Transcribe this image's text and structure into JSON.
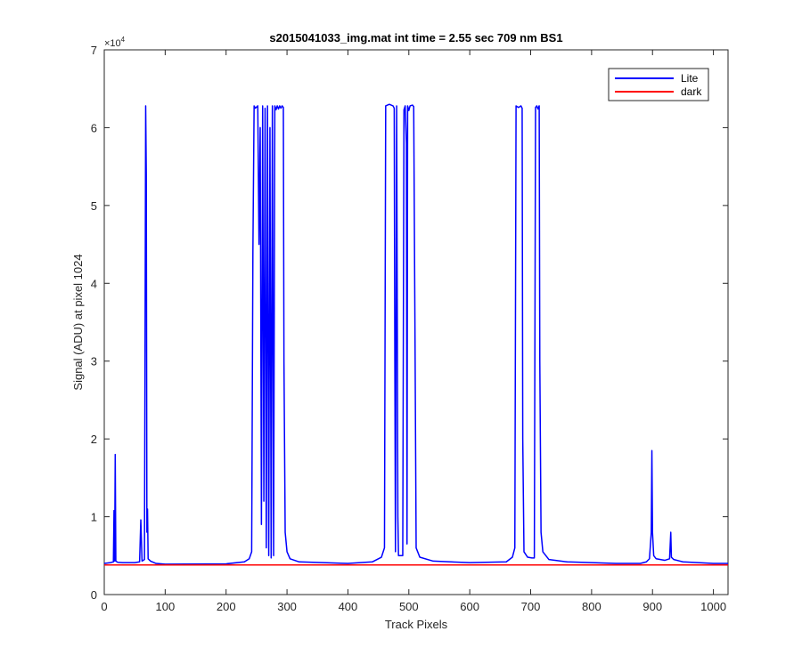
{
  "chart_data": {
    "type": "line",
    "title": "s2015041033_img.mat int time = 2.55 sec  709 nm BS1",
    "xlabel": "Track Pixels",
    "ylabel": "Signal (ADU) at pixel 1024",
    "xlim": [
      0,
      1024
    ],
    "ylim": [
      0,
      70000
    ],
    "xticks": [
      0,
      100,
      200,
      300,
      400,
      500,
      600,
      700,
      800,
      900,
      1000
    ],
    "yticks": [
      0,
      10000,
      20000,
      30000,
      40000,
      50000,
      60000,
      70000
    ],
    "ytick_labels": [
      "0",
      "1",
      "2",
      "3",
      "4",
      "5",
      "6",
      "7"
    ],
    "yscale_exponent_label": "×10",
    "yscale_exponent_power": "4",
    "grid": false,
    "legend_position": "top-right",
    "series": [
      {
        "name": "Lite",
        "color": "#0000ff",
        "points": [
          [
            0,
            4000
          ],
          [
            10,
            4100
          ],
          [
            15,
            4200
          ],
          [
            16,
            10800
          ],
          [
            17,
            4300
          ],
          [
            18,
            18000
          ],
          [
            19,
            4300
          ],
          [
            22,
            4150
          ],
          [
            30,
            4100
          ],
          [
            50,
            4100
          ],
          [
            58,
            4200
          ],
          [
            60,
            9600
          ],
          [
            62,
            4300
          ],
          [
            66,
            4500
          ],
          [
            68,
            62800
          ],
          [
            69,
            54000
          ],
          [
            70,
            8000
          ],
          [
            71,
            11000
          ],
          [
            72,
            4600
          ],
          [
            76,
            4300
          ],
          [
            85,
            4000
          ],
          [
            100,
            3900
          ],
          [
            200,
            3950
          ],
          [
            230,
            4200
          ],
          [
            238,
            4600
          ],
          [
            242,
            5500
          ],
          [
            244,
            44000
          ],
          [
            246,
            62800
          ],
          [
            248,
            62500
          ],
          [
            252,
            62800
          ],
          [
            254,
            45000
          ],
          [
            256,
            60000
          ],
          [
            258,
            9000
          ],
          [
            260,
            62800
          ],
          [
            262,
            12000
          ],
          [
            264,
            62500
          ],
          [
            266,
            6000
          ],
          [
            268,
            62800
          ],
          [
            270,
            5000
          ],
          [
            272,
            60000
          ],
          [
            274,
            4700
          ],
          [
            276,
            62800
          ],
          [
            278,
            5000
          ],
          [
            280,
            62800
          ],
          [
            282,
            62300
          ],
          [
            284,
            62800
          ],
          [
            286,
            62400
          ],
          [
            288,
            62800
          ],
          [
            290,
            62500
          ],
          [
            292,
            62800
          ],
          [
            294,
            62600
          ],
          [
            295,
            30000
          ],
          [
            297,
            8000
          ],
          [
            300,
            5500
          ],
          [
            305,
            4600
          ],
          [
            320,
            4200
          ],
          [
            400,
            4000
          ],
          [
            440,
            4200
          ],
          [
            455,
            4800
          ],
          [
            460,
            6000
          ],
          [
            462,
            62800
          ],
          [
            468,
            63000
          ],
          [
            474,
            62800
          ],
          [
            476,
            62500
          ],
          [
            477,
            30000
          ],
          [
            478,
            5500
          ],
          [
            480,
            62800
          ],
          [
            482,
            10000
          ],
          [
            483,
            5000
          ],
          [
            490,
            5000
          ],
          [
            492,
            62300
          ],
          [
            494,
            62800
          ],
          [
            496,
            58000
          ],
          [
            497,
            6500
          ],
          [
            498,
            62800
          ],
          [
            500,
            62200
          ],
          [
            502,
            62800
          ],
          [
            506,
            62900
          ],
          [
            508,
            62700
          ],
          [
            510,
            35000
          ],
          [
            512,
            6000
          ],
          [
            518,
            4800
          ],
          [
            540,
            4300
          ],
          [
            600,
            4100
          ],
          [
            660,
            4200
          ],
          [
            670,
            4800
          ],
          [
            674,
            6000
          ],
          [
            676,
            62800
          ],
          [
            680,
            62600
          ],
          [
            684,
            62800
          ],
          [
            686,
            62500
          ],
          [
            687,
            20000
          ],
          [
            689,
            5500
          ],
          [
            695,
            4800
          ],
          [
            702,
            4700
          ],
          [
            706,
            4700
          ],
          [
            708,
            62600
          ],
          [
            710,
            62800
          ],
          [
            712,
            62400
          ],
          [
            714,
            62800
          ],
          [
            715,
            30000
          ],
          [
            717,
            8000
          ],
          [
            720,
            5500
          ],
          [
            730,
            4500
          ],
          [
            760,
            4200
          ],
          [
            800,
            4100
          ],
          [
            840,
            4000
          ],
          [
            880,
            4000
          ],
          [
            890,
            4200
          ],
          [
            895,
            4600
          ],
          [
            898,
            8000
          ],
          [
            899,
            18500
          ],
          [
            900,
            8000
          ],
          [
            902,
            5000
          ],
          [
            906,
            4600
          ],
          [
            920,
            4400
          ],
          [
            928,
            4600
          ],
          [
            930,
            8000
          ],
          [
            931,
            4800
          ],
          [
            935,
            4500
          ],
          [
            950,
            4200
          ],
          [
            1000,
            4000
          ],
          [
            1024,
            4000
          ]
        ]
      },
      {
        "name": "dark",
        "color": "#ff0000",
        "points": [
          [
            0,
            3800
          ],
          [
            1024,
            3800
          ]
        ]
      }
    ]
  }
}
